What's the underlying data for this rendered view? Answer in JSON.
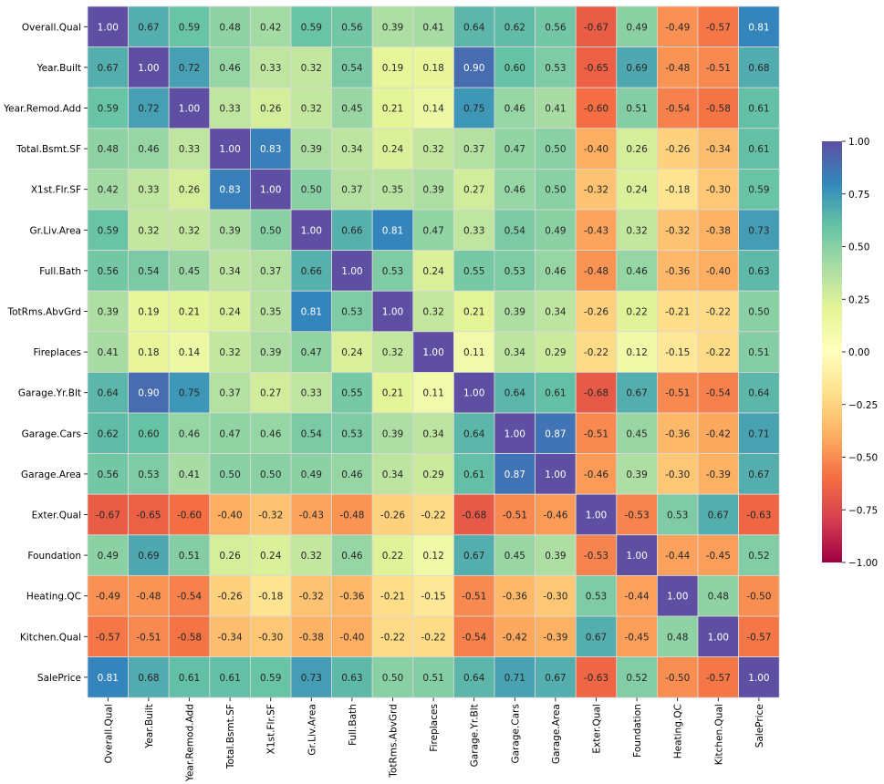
{
  "chart_data": {
    "type": "heatmap",
    "title": "",
    "xlabel": "",
    "ylabel": "",
    "colormap": "Spectral",
    "vmin": -1.0,
    "vmax": 1.0,
    "grid": true,
    "grid_color": "#d9d9d9",
    "annotation_format": "0.00",
    "legend_position": "right",
    "colorbar_ticks": [
      "1.00",
      "0.75",
      "0.50",
      "0.25",
      "0.00",
      "−0.25",
      "−0.50",
      "−0.75",
      "−1.00"
    ],
    "colorbar_tick_values": [
      1.0,
      0.75,
      0.5,
      0.25,
      0.0,
      -0.25,
      -0.5,
      -0.75,
      -1.0
    ],
    "labels": [
      "Overall.Qual",
      "Year.Built",
      "Year.Remod.Add",
      "Total.Bsmt.SF",
      "X1st.Flr.SF",
      "Gr.Liv.Area",
      "Full.Bath",
      "TotRms.AbvGrd",
      "Fireplaces",
      "Garage.Yr.Blt",
      "Garage.Cars",
      "Garage.Area",
      "Exter.Qual",
      "Foundation",
      "Heating.QC",
      "Kitchen.Qual",
      "SalePrice"
    ],
    "matrix": [
      [
        1.0,
        0.67,
        0.59,
        0.48,
        0.42,
        0.59,
        0.56,
        0.39,
        0.41,
        0.64,
        0.62,
        0.56,
        -0.67,
        0.49,
        -0.49,
        -0.57,
        0.81
      ],
      [
        0.67,
        1.0,
        0.72,
        0.46,
        0.33,
        0.32,
        0.54,
        0.19,
        0.18,
        0.9,
        0.6,
        0.53,
        -0.65,
        0.69,
        -0.48,
        -0.51,
        0.68
      ],
      [
        0.59,
        0.72,
        1.0,
        0.33,
        0.26,
        0.32,
        0.45,
        0.21,
        0.14,
        0.75,
        0.46,
        0.41,
        -0.6,
        0.51,
        -0.54,
        -0.58,
        0.61
      ],
      [
        0.48,
        0.46,
        0.33,
        1.0,
        0.83,
        0.39,
        0.34,
        0.24,
        0.32,
        0.37,
        0.47,
        0.5,
        -0.4,
        0.26,
        -0.26,
        -0.34,
        0.61
      ],
      [
        0.42,
        0.33,
        0.26,
        0.83,
        1.0,
        0.5,
        0.37,
        0.35,
        0.39,
        0.27,
        0.46,
        0.5,
        -0.32,
        0.24,
        -0.18,
        -0.3,
        0.59
      ],
      [
        0.59,
        0.32,
        0.32,
        0.39,
        0.5,
        1.0,
        0.66,
        0.81,
        0.47,
        0.33,
        0.54,
        0.49,
        -0.43,
        0.32,
        -0.32,
        -0.38,
        0.73
      ],
      [
        0.56,
        0.54,
        0.45,
        0.34,
        0.37,
        0.66,
        1.0,
        0.53,
        0.24,
        0.55,
        0.53,
        0.46,
        -0.48,
        0.46,
        -0.36,
        -0.4,
        0.63
      ],
      [
        0.39,
        0.19,
        0.21,
        0.24,
        0.35,
        0.81,
        0.53,
        1.0,
        0.32,
        0.21,
        0.39,
        0.34,
        -0.26,
        0.22,
        -0.21,
        -0.22,
        0.5
      ],
      [
        0.41,
        0.18,
        0.14,
        0.32,
        0.39,
        0.47,
        0.24,
        0.32,
        1.0,
        0.11,
        0.34,
        0.29,
        -0.22,
        0.12,
        -0.15,
        -0.22,
        0.51
      ],
      [
        0.64,
        0.9,
        0.75,
        0.37,
        0.27,
        0.33,
        0.55,
        0.21,
        0.11,
        1.0,
        0.64,
        0.61,
        -0.68,
        0.67,
        -0.51,
        -0.54,
        0.64
      ],
      [
        0.62,
        0.6,
        0.46,
        0.47,
        0.46,
        0.54,
        0.53,
        0.39,
        0.34,
        0.64,
        1.0,
        0.87,
        -0.51,
        0.45,
        -0.36,
        -0.42,
        0.71
      ],
      [
        0.56,
        0.53,
        0.41,
        0.5,
        0.5,
        0.49,
        0.46,
        0.34,
        0.29,
        0.61,
        0.87,
        1.0,
        -0.46,
        0.39,
        -0.3,
        -0.39,
        0.67
      ],
      [
        -0.67,
        -0.65,
        -0.6,
        -0.4,
        -0.32,
        -0.43,
        -0.48,
        -0.26,
        -0.22,
        -0.68,
        -0.51,
        -0.46,
        1.0,
        -0.53,
        0.53,
        0.67,
        -0.63
      ],
      [
        0.49,
        0.69,
        0.51,
        0.26,
        0.24,
        0.32,
        0.46,
        0.22,
        0.12,
        0.67,
        0.45,
        0.39,
        -0.53,
        1.0,
        -0.44,
        -0.45,
        0.52
      ],
      [
        -0.49,
        -0.48,
        -0.54,
        -0.26,
        -0.18,
        -0.32,
        -0.36,
        -0.21,
        -0.15,
        -0.51,
        -0.36,
        -0.3,
        0.53,
        -0.44,
        1.0,
        0.48,
        -0.5
      ],
      [
        -0.57,
        -0.51,
        -0.58,
        -0.34,
        -0.3,
        -0.38,
        -0.4,
        -0.22,
        -0.22,
        -0.54,
        -0.42,
        -0.39,
        0.67,
        -0.45,
        0.48,
        1.0,
        -0.57
      ],
      [
        0.81,
        0.68,
        0.61,
        0.61,
        0.59,
        0.73,
        0.63,
        0.5,
        0.51,
        0.64,
        0.71,
        0.67,
        -0.63,
        0.52,
        -0.5,
        -0.57,
        1.0
      ]
    ]
  }
}
